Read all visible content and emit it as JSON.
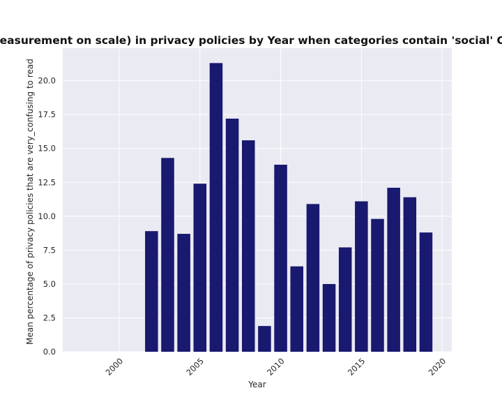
{
  "chart_data": {
    "type": "bar",
    "title": "cult measurement on scale) in privacy policies by Year when categories contain 'social' OR 'tec",
    "xlabel": "Year",
    "ylabel": "Mean percentage of privacy policies that are very_confusing to read",
    "x": [
      2002,
      2003,
      2004,
      2005,
      2006,
      2007,
      2008,
      2009,
      2010,
      2011,
      2012,
      2013,
      2014,
      2015,
      2016,
      2017,
      2018,
      2019
    ],
    "values": [
      8.9,
      14.3,
      8.7,
      12.4,
      21.3,
      17.2,
      15.6,
      1.9,
      13.8,
      6.3,
      10.9,
      5.0,
      7.7,
      11.1,
      9.8,
      12.1,
      11.4,
      8.8
    ],
    "xlim": [
      1996.5,
      2020.6
    ],
    "ylim": [
      0,
      22.4
    ],
    "xticks": [
      2000,
      2005,
      2010,
      2015,
      2020
    ],
    "yticks": [
      0.0,
      2.5,
      5.0,
      7.5,
      10.0,
      12.5,
      15.0,
      17.5,
      20.0
    ],
    "ytick_labels": [
      "0.0",
      "2.5",
      "5.0",
      "7.5",
      "10.0",
      "12.5",
      "15.0",
      "17.5",
      "20.0"
    ],
    "grid": true,
    "colors": {
      "bar": "#191970",
      "plot_background": "#eaeaf2",
      "grid": "#ffffff"
    }
  }
}
